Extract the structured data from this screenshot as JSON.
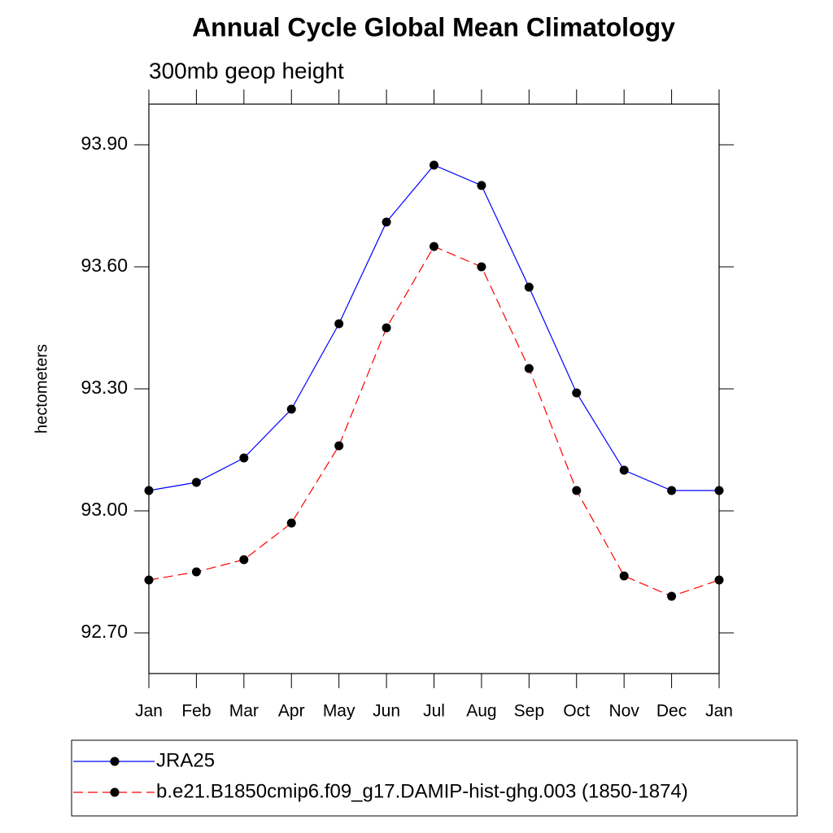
{
  "chart_data": {
    "type": "line",
    "title": "Annual Cycle Global Mean Climatology",
    "subtitle": "300mb geop height",
    "y_label": "hectometers",
    "categories": [
      "Jan",
      "Feb",
      "Mar",
      "Apr",
      "May",
      "Jun",
      "Jul",
      "Aug",
      "Sep",
      "Oct",
      "Nov",
      "Dec",
      "Jan"
    ],
    "series": [
      {
        "name": "JRA25",
        "color": "#0000ff",
        "dashed": false,
        "values": [
          93.05,
          93.07,
          93.13,
          93.25,
          93.46,
          93.71,
          93.85,
          93.8,
          93.55,
          93.29,
          93.1,
          93.05,
          93.05
        ]
      },
      {
        "name": "b.e21.B1850cmip6.f09_g17.DAMIP-hist-ghg.003 (1850-1874)",
        "color": "#ff0000",
        "dashed": true,
        "values": [
          92.83,
          92.85,
          92.88,
          92.97,
          93.16,
          93.45,
          93.65,
          93.6,
          93.35,
          93.05,
          92.84,
          92.79,
          92.83
        ]
      }
    ],
    "ylim": [
      92.6,
      94.0
    ],
    "yticks": [
      {
        "value": 92.7,
        "label": "92.70"
      },
      {
        "value": 93.0,
        "label": "93.00"
      },
      {
        "value": 93.3,
        "label": "93.30"
      },
      {
        "value": 93.6,
        "label": "93.60"
      },
      {
        "value": 93.9,
        "label": "93.90"
      }
    ]
  }
}
